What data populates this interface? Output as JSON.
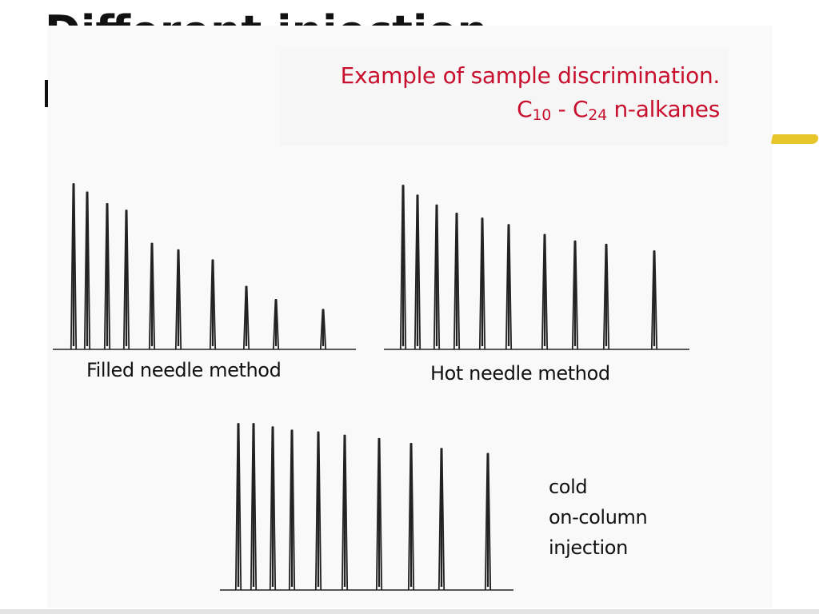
{
  "slide": {
    "title": "Different injection"
  },
  "caption": {
    "line1": "Example of sample discrimination.",
    "c_start": "C",
    "c_start_sub": "10",
    "dash": " - ",
    "c_end": "C",
    "c_end_sub": "24",
    "suffix": " n-alkanes"
  },
  "colors": {
    "caption": "#c8102e",
    "trace": "#222222",
    "highlight": "#e8c52a"
  },
  "chart_data": [
    {
      "type": "line",
      "label": "Filled needle method",
      "relative_peak_heights": [
        1.0,
        0.95,
        0.88,
        0.84,
        0.64,
        0.6,
        0.54,
        0.38,
        0.3,
        0.24
      ]
    },
    {
      "type": "line",
      "label": "Hot needle method",
      "relative_peak_heights": [
        1.0,
        0.94,
        0.88,
        0.83,
        0.8,
        0.76,
        0.7,
        0.66,
        0.64,
        0.6
      ]
    },
    {
      "type": "line",
      "label_lines": [
        "cold",
        "on-column",
        "injection"
      ],
      "relative_peak_heights": [
        1.0,
        1.0,
        0.98,
        0.96,
        0.95,
        0.93,
        0.91,
        0.88,
        0.85,
        0.82
      ]
    }
  ]
}
